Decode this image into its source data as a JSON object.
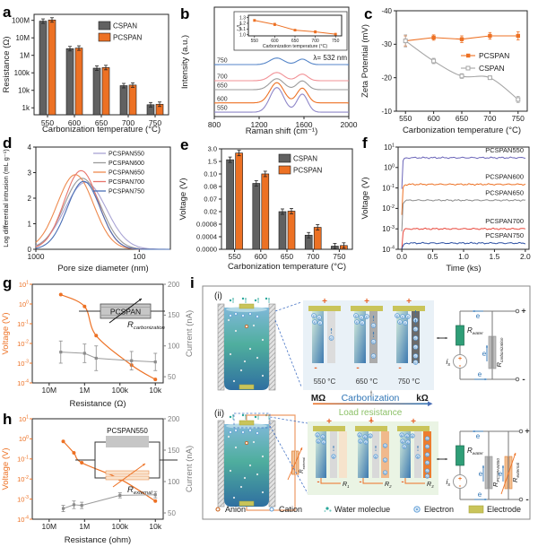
{
  "panels": {
    "a": {
      "letter": "a"
    },
    "b": {
      "letter": "b"
    },
    "c": {
      "letter": "c"
    },
    "d": {
      "letter": "d"
    },
    "e": {
      "letter": "e"
    },
    "f": {
      "letter": "f"
    },
    "g": {
      "letter": "g"
    },
    "h": {
      "letter": "h"
    },
    "i": {
      "letter": "i"
    }
  },
  "chart_data": [
    {
      "id": "a",
      "type": "bar",
      "xlabel": "Carbonization temperature (°C)",
      "ylabel": "Resistance (Ω)",
      "categories": [
        "550",
        "600",
        "650",
        "700",
        "750"
      ],
      "yticks": [
        {
          "v": 100000000,
          "label": "100M"
        },
        {
          "v": 10000000,
          "label": "10M"
        },
        {
          "v": 1000000,
          "label": "1M"
        },
        {
          "v": 100000,
          "label": "100k"
        },
        {
          "v": 10000,
          "label": "10k"
        },
        {
          "v": 1000,
          "label": "1k"
        }
      ],
      "series": [
        {
          "name": "CSPAN",
          "color": "#616161",
          "values": [
            90000000,
            2400000,
            185000,
            18500,
            1500
          ]
        },
        {
          "name": "PCSPAN",
          "color": "#ED7124",
          "values": [
            105000000,
            2600000,
            200000,
            20000,
            1600
          ]
        }
      ]
    },
    {
      "id": "b",
      "type": "line",
      "xlabel": "Raman shift (cm⁻¹)",
      "ylabel": "Intensity (a.u.)",
      "xticks": [
        800,
        1200,
        1600,
        2000
      ],
      "xlim": [
        800,
        2000
      ],
      "annotation": "λ= 532 nm",
      "peak_centers": {
        "d": 1358,
        "g": 1585
      },
      "peak_sigmas": {
        "d": 62,
        "g": 48
      },
      "series": [
        {
          "name": "750",
          "color": "#5585C8",
          "base": 0.475,
          "amp_d": 0.06,
          "amp_g": 0.05
        },
        {
          "name": "700",
          "color": "#F29196",
          "base": 0.328,
          "amp_d": 0.075,
          "amp_g": 0.06
        },
        {
          "name": "650",
          "color": "#9B9B9B",
          "base": 0.246,
          "amp_d": 0.1,
          "amp_g": 0.08
        },
        {
          "name": "600",
          "color": "#ED7124",
          "base": 0.125,
          "amp_d": 0.185,
          "amp_g": 0.135
        },
        {
          "name": "550",
          "color": "#8E86C8",
          "base": 0.04,
          "amp_d": 0.225,
          "amp_g": 0.165
        }
      ],
      "inset": {
        "ylabel_main": "I",
        "ylabel_sub": "D",
        "ylabel_main2": "I",
        "ylabel_sub2": "G",
        "xlabel": "Carbonization temperature (°C)",
        "x": [
          550,
          600,
          650,
          700,
          750
        ],
        "y": [
          1.25,
          1.18,
          1.08,
          1.05,
          1.01
        ],
        "err": [
          0.015,
          0.02,
          0.012,
          0.02,
          0.012
        ],
        "yticks": [
          "1.0",
          "1.1",
          "1.2",
          "1.3"
        ],
        "color": "#ED7124"
      }
    },
    {
      "id": "c",
      "type": "line",
      "xlabel": "Carbonization temperature (°C)",
      "ylabel": "Zeta Potential (mV)",
      "x": [
        550,
        600,
        650,
        700,
        750
      ],
      "yticks": [
        "-40",
        "-30",
        "-20",
        "-10"
      ],
      "y_inverted": true,
      "series": [
        {
          "name": "PCSPAN",
          "color": "#ED7124",
          "marker": "filled-square",
          "values": [
            -31,
            -32,
            -31.5,
            -32.5,
            -32.5
          ],
          "err": [
            1.5,
            0.8,
            1.0,
            1.0,
            1.2
          ]
        },
        {
          "name": "CSPAN",
          "color": "#A6A6A6",
          "marker": "open-square",
          "values": [
            -31,
            -25,
            -20.5,
            -20,
            -13.5
          ],
          "err": [
            1.8,
            0.8,
            0.7,
            0.5,
            0.9
          ]
        }
      ]
    },
    {
      "id": "d",
      "type": "line",
      "xlabel": "Pore size diameter (nm)",
      "ylabel": "Log differential intrusion (mL g⁻¹)",
      "xscale": "log-reversed",
      "xlim": [
        1000,
        50
      ],
      "xticks": [
        "1000",
        "100"
      ],
      "yticks": [
        "0",
        "1",
        "2",
        "3",
        "4"
      ],
      "ylim": [
        0,
        4
      ],
      "series": [
        {
          "name": "PCSPAN550",
          "color": "#A9A4D4",
          "peak_nm": 330,
          "height": 2.62,
          "sigma_log": 0.2
        },
        {
          "name": "PCSPAN600",
          "color": "#9A9A9A",
          "peak_nm": 355,
          "height": 2.78,
          "sigma_log": 0.18
        },
        {
          "name": "PCSPAN650",
          "color": "#EE8A4E",
          "peak_nm": 415,
          "height": 2.92,
          "sigma_log": 0.175
        },
        {
          "name": "PCSPAN700",
          "color": "#E8756B",
          "peak_nm": 365,
          "height": 3.08,
          "sigma_log": 0.165
        },
        {
          "name": "PCSPAN750",
          "color": "#4A6FB5",
          "peak_nm": 345,
          "height": 2.66,
          "sigma_log": 0.16
        }
      ]
    },
    {
      "id": "e",
      "type": "bar",
      "xlabel": "Carbonization temperature (°C)",
      "ylabel": "Voltage (V)",
      "categories": [
        "550",
        "600",
        "650",
        "700",
        "750"
      ],
      "ytick_values": [
        0,
        0.0004,
        0.0008,
        0.02,
        0.07,
        0.08,
        0.1,
        1.5,
        3.0
      ],
      "ytick_labels": [
        "0.0000",
        "0.0004",
        "0.0008",
        "0.02",
        "0.07",
        "0.08",
        "0.10",
        "1.5",
        "3.0"
      ],
      "series": [
        {
          "name": "CSPAN",
          "color": "#616161",
          "values": [
            1.7,
            0.085,
            0.02,
            0.00045,
            0.0001
          ]
        },
        {
          "name": "PCSPAN",
          "color": "#ED7124",
          "values": [
            2.5,
            0.105,
            0.022,
            0.0007,
            0.00012
          ]
        }
      ]
    },
    {
      "id": "f",
      "type": "line",
      "xlabel": "Time (ks)",
      "ylabel": "Voltage (V)",
      "xticks": [
        "0.0",
        "0.5",
        "1.0",
        "1.5",
        "2.0"
      ],
      "ytick_exponents": [
        1,
        0,
        -1,
        -2,
        -3,
        -4
      ],
      "series": [
        {
          "name": "PCSPAN550",
          "color": "#6A64B8",
          "plateau": 3
        },
        {
          "name": "PCSPAN600",
          "color": "#ED7124",
          "plateau": 0.15
        },
        {
          "name": "PCSPAN650",
          "color": "#8C8C8C",
          "plateau": 0.025
        },
        {
          "name": "PCSPAN700",
          "color": "#E8483C",
          "plateau": 0.001
        },
        {
          "name": "PCSPAN750",
          "color": "#2B4FA2",
          "plateau": 0.0002
        }
      ]
    },
    {
      "id": "g",
      "type": "scatter",
      "xlabel": "Resistance (Ω)",
      "ylabel_left": "Voltage (V)",
      "ylabel_right": "Current (nA)",
      "xticks": [
        {
          "v": 10000000,
          "label": "10M"
        },
        {
          "v": 1000000,
          "label": "1M"
        },
        {
          "v": 100000,
          "label": "100k"
        },
        {
          "v": 10000,
          "label": "10k"
        }
      ],
      "ytick_exponents": [
        1,
        0,
        -1,
        -2,
        -3,
        -4
      ],
      "right_yticks": [
        200,
        150,
        100,
        50
      ],
      "voltage_series": {
        "color": "#ED7124",
        "x": [
          4700000,
          1000000,
          470000,
          47000,
          10000
        ],
        "y": [
          3,
          0.75,
          0.025,
          0.0008,
          0.00015
        ]
      },
      "current_series": {
        "color": "#9B9B9B",
        "x": [
          4700000,
          1000000,
          470000,
          47000,
          10000
        ],
        "y": [
          90,
          88,
          80,
          76,
          74
        ],
        "err": [
          18,
          15,
          20,
          15,
          14
        ]
      },
      "inset": {
        "box_label": "PCSPAN",
        "r_main": "R",
        "r_sub": "carbonization"
      }
    },
    {
      "id": "h",
      "type": "scatter",
      "xlabel": "Resistance (ohm)",
      "ylabel_left": "Voltage (V)",
      "ylabel_right": "Current (nA)",
      "xticks": [
        {
          "v": 10000000,
          "label": "10M"
        },
        {
          "v": 1000000,
          "label": "1M"
        },
        {
          "v": 100000,
          "label": "100k"
        },
        {
          "v": 10000,
          "label": "10k"
        }
      ],
      "ytick_exponents": [
        1,
        0,
        -1,
        -2,
        -3,
        -4
      ],
      "right_yticks": [
        200,
        150,
        100,
        50
      ],
      "voltage_series": {
        "color": "#ED7124",
        "x": [
          4000000,
          2000000,
          1200000,
          100000,
          10000
        ],
        "y": [
          0.75,
          0.2,
          0.065,
          0.01,
          0.0008
        ]
      },
      "current_series": {
        "color": "#9B9B9B",
        "x": [
          4000000,
          2000000,
          1200000,
          100000,
          10000
        ],
        "y": [
          57,
          63,
          62,
          78,
          79
        ],
        "err": [
          5,
          6,
          5,
          4,
          5
        ]
      },
      "inset": {
        "box_label": "PCSPAN550",
        "r_main": "R",
        "r_sub": "external"
      }
    }
  ],
  "diagram": {
    "sub_i": "(i)",
    "sub_ii": "(ii)",
    "temps": [
      "550 °C",
      "650 °C",
      "750 °C"
    ],
    "mohm": "MΩ",
    "carbonization": "Carbonization",
    "kohm": "kΩ",
    "load_resistance": "Load resistance",
    "plus": "+",
    "minus": "-",
    "e_label": "e",
    "r_water": {
      "main": "R",
      "sub": "water"
    },
    "i_s": {
      "main": "i",
      "sub": "s"
    },
    "r_carb": {
      "main": "R",
      "sub": "carbonization"
    },
    "r_pcspan": {
      "main": "R",
      "sub": "PCSPAN550"
    },
    "r_ext": {
      "main": "R",
      "sub": "external"
    },
    "r_cells": [
      {
        "main": "R",
        "sub": "1"
      },
      {
        "main": "R",
        "sub": "2"
      },
      {
        "main": "R",
        "sub": "3"
      }
    ],
    "legend": [
      {
        "icon": "anion",
        "label": "Anion"
      },
      {
        "icon": "cation",
        "label": "Cation"
      },
      {
        "icon": "water",
        "label": "Water moleclue"
      },
      {
        "icon": "electron",
        "label": "Electron"
      },
      {
        "icon": "electrode",
        "label": "Electrode"
      }
    ],
    "colors": {
      "panel1_bg": "#E9F1F7",
      "panel2_bg": "#EAF4E4",
      "gray_cols": [
        "#DCDCDC",
        "#ABABAB",
        "#6B6B6B"
      ],
      "orange_cols": [
        "#F6E3CC",
        "#F0B98C",
        "#EC7D2F"
      ],
      "electrode": "#C9C45A",
      "blue": "#2E74B5",
      "green_label": "#8CC168",
      "orange": "#ED7124"
    }
  }
}
